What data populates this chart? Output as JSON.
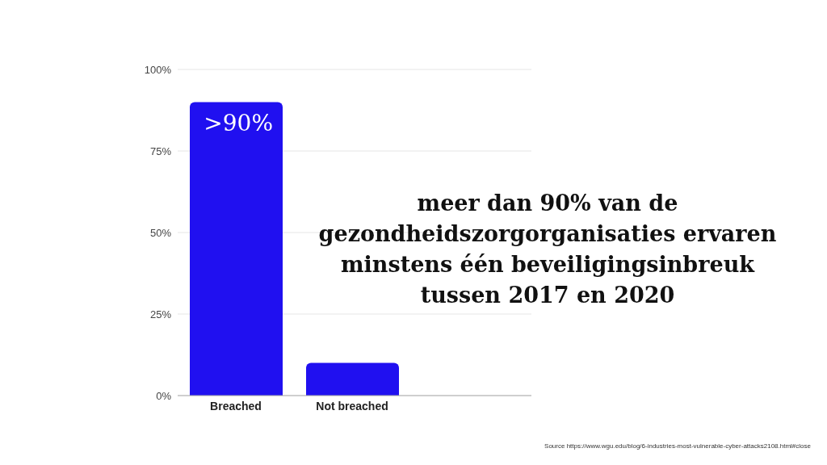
{
  "chart_data": {
    "type": "bar",
    "categories": [
      "Breached",
      "Not breached"
    ],
    "values": [
      90,
      10
    ],
    "color": "#2010f0",
    "value_labels": [
      ">90%",
      null
    ],
    "ylim": [
      0,
      100
    ],
    "yticks": [
      {
        "value": 0,
        "label": "0%"
      },
      {
        "value": 25,
        "label": "25%"
      },
      {
        "value": 50,
        "label": "50%"
      },
      {
        "value": 75,
        "label": "75%"
      },
      {
        "value": 100,
        "label": "100%"
      }
    ],
    "grid": "y",
    "legend": false,
    "annotations": [
      "meer dan 90% van de gezondheidszorgorganisaties ervaren minstens één beveiligingsinbreuk tussen 2017 en 2020",
      "Source https://www.wgu.edu/blog/6-industries-most-vulnerable-cyber-attacks2108.html#close"
    ]
  }
}
